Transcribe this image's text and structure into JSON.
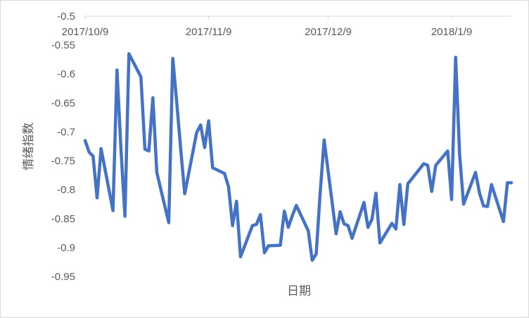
{
  "chart_data": {
    "type": "line",
    "title": "",
    "xlabel": "日期",
    "ylabel": "情绪指数",
    "x_axis_position": "top",
    "x_tick_labels": [
      "2017/10/9",
      "2017/11/9",
      "2017/12/9",
      "2018/1/9"
    ],
    "x_tick_dates": [
      "2017-10-09",
      "2017-11-09",
      "2017-12-09",
      "2018-01-09"
    ],
    "y_tick_labels": [
      "-0.5",
      "-0.55",
      "-0.6",
      "-0.65",
      "-0.7",
      "-0.75",
      "-0.8",
      "-0.85",
      "-0.9",
      "-0.95"
    ],
    "ylim": [
      -0.95,
      -0.5
    ],
    "xlim": [
      "2017-10-09",
      "2018-01-24"
    ],
    "grid": false,
    "legend": "none",
    "series": [
      {
        "color": "#4472c4",
        "x": [
          "2017-10-09",
          "2017-10-10",
          "2017-10-11",
          "2017-10-12",
          "2017-10-13",
          "2017-10-16",
          "2017-10-17",
          "2017-10-18",
          "2017-10-19",
          "2017-10-20",
          "2017-10-23",
          "2017-10-24",
          "2017-10-25",
          "2017-10-26",
          "2017-10-27",
          "2017-10-30",
          "2017-10-31",
          "2017-11-01",
          "2017-11-02",
          "2017-11-03",
          "2017-11-06",
          "2017-11-07",
          "2017-11-08",
          "2017-11-09",
          "2017-11-10",
          "2017-11-13",
          "2017-11-14",
          "2017-11-15",
          "2017-11-16",
          "2017-11-17",
          "2017-11-20",
          "2017-11-21",
          "2017-11-22",
          "2017-11-23",
          "2017-11-24",
          "2017-11-27",
          "2017-11-28",
          "2017-11-29",
          "2017-11-30",
          "2017-12-01",
          "2017-12-04",
          "2017-12-05",
          "2017-12-06",
          "2017-12-07",
          "2017-12-08",
          "2017-12-11",
          "2017-12-12",
          "2017-12-13",
          "2017-12-14",
          "2017-12-15",
          "2017-12-18",
          "2017-12-19",
          "2017-12-20",
          "2017-12-21",
          "2017-12-22",
          "2017-12-25",
          "2017-12-26",
          "2017-12-27",
          "2017-12-28",
          "2017-12-29",
          "2018-01-02",
          "2018-01-03",
          "2018-01-04",
          "2018-01-05",
          "2018-01-08",
          "2018-01-09",
          "2018-01-10",
          "2018-01-11",
          "2018-01-12",
          "2018-01-15",
          "2018-01-16",
          "2018-01-17",
          "2018-01-18",
          "2018-01-19",
          "2018-01-22",
          "2018-01-23",
          "2018-01-24"
        ],
        "values": [
          -0.715,
          -0.735,
          -0.742,
          -0.814,
          -0.729,
          -0.836,
          -0.593,
          -0.731,
          -0.846,
          -0.565,
          -0.605,
          -0.73,
          -0.733,
          -0.641,
          -0.77,
          -0.857,
          -0.573,
          -0.65,
          -0.73,
          -0.807,
          -0.701,
          -0.688,
          -0.727,
          -0.681,
          -0.762,
          -0.772,
          -0.795,
          -0.862,
          -0.82,
          -0.916,
          -0.862,
          -0.86,
          -0.843,
          -0.909,
          -0.897,
          -0.896,
          -0.837,
          -0.865,
          -0.845,
          -0.827,
          -0.871,
          -0.922,
          -0.911,
          -0.806,
          -0.714,
          -0.876,
          -0.838,
          -0.859,
          -0.862,
          -0.884,
          -0.822,
          -0.865,
          -0.851,
          -0.806,
          -0.892,
          -0.858,
          -0.868,
          -0.791,
          -0.86,
          -0.79,
          -0.755,
          -0.758,
          -0.803,
          -0.758,
          -0.733,
          -0.817,
          -0.571,
          -0.74,
          -0.825,
          -0.77,
          -0.806,
          -0.828,
          -0.829,
          -0.791,
          -0.855,
          -0.788,
          -0.788
        ]
      }
    ]
  }
}
